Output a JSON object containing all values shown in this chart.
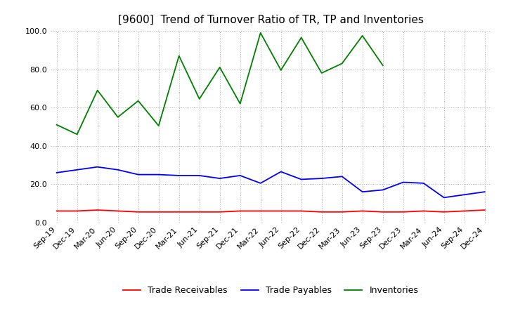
{
  "title": "[9600]  Trend of Turnover Ratio of TR, TP and Inventories",
  "xlabels": [
    "Sep-19",
    "Dec-19",
    "Mar-20",
    "Jun-20",
    "Sep-20",
    "Dec-20",
    "Mar-21",
    "Jun-21",
    "Sep-21",
    "Dec-21",
    "Mar-22",
    "Jun-22",
    "Sep-22",
    "Dec-22",
    "Mar-23",
    "Jun-23",
    "Sep-23",
    "Dec-23",
    "Mar-24",
    "Jun-24",
    "Sep-24",
    "Dec-24"
  ],
  "trade_receivables": [
    6.0,
    6.0,
    6.5,
    6.0,
    5.5,
    5.5,
    5.5,
    5.5,
    5.5,
    6.0,
    6.0,
    6.0,
    6.0,
    5.5,
    5.5,
    6.0,
    5.5,
    5.5,
    6.0,
    5.5,
    6.0,
    6.5
  ],
  "trade_payables": [
    26.0,
    27.5,
    29.0,
    27.5,
    25.0,
    25.0,
    24.5,
    24.5,
    23.0,
    24.5,
    20.5,
    26.5,
    22.5,
    23.0,
    24.0,
    16.0,
    17.0,
    21.0,
    20.5,
    13.0,
    14.5,
    16.0
  ],
  "inventories": [
    51.0,
    46.0,
    69.0,
    55.0,
    63.5,
    50.5,
    87.0,
    64.5,
    81.0,
    62.0,
    99.0,
    79.5,
    96.5,
    78.0,
    83.0,
    97.5,
    82.0,
    null,
    null,
    null,
    null,
    null
  ],
  "ylim": [
    0.0,
    100.0
  ],
  "yticks": [
    0.0,
    20.0,
    40.0,
    60.0,
    80.0,
    100.0
  ],
  "tr_color": "#ff0000",
  "tp_color": "#0000ff",
  "inv_color": "#008000",
  "bg_color": "#ffffff",
  "plot_bg_color": "#ffffff",
  "grid_color": "#b0b0b0",
  "title_fontsize": 11,
  "legend_fontsize": 9,
  "tick_fontsize": 8
}
